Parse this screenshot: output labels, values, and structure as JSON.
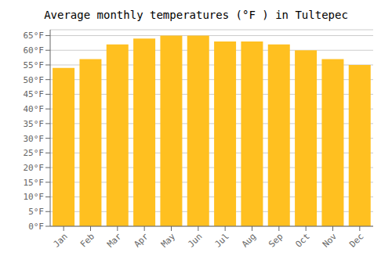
{
  "chart_data": {
    "type": "bar",
    "title": "Average monthly temperatures (°F ) in Tultepec",
    "categories": [
      "Jan",
      "Feb",
      "Mar",
      "Apr",
      "May",
      "Jun",
      "Jul",
      "Aug",
      "Sep",
      "Oct",
      "Nov",
      "Dec"
    ],
    "values": [
      54,
      57,
      62,
      64,
      65,
      65,
      63,
      63,
      62,
      60,
      57,
      55
    ],
    "color": "#FFC020",
    "ylim": [
      0,
      67
    ],
    "yticks": [
      {
        "value": 0,
        "label": "0°F"
      },
      {
        "value": 5,
        "label": "5°F"
      },
      {
        "value": 10,
        "label": "10°F"
      },
      {
        "value": 15,
        "label": "15°F"
      },
      {
        "value": 20,
        "label": "20°F"
      },
      {
        "value": 25,
        "label": "25°F"
      },
      {
        "value": 30,
        "label": "30°F"
      },
      {
        "value": 35,
        "label": "35°F"
      },
      {
        "value": 40,
        "label": "40°F"
      },
      {
        "value": 45,
        "label": "45°F"
      },
      {
        "value": 50,
        "label": "50°F"
      },
      {
        "value": 55,
        "label": "55°F"
      },
      {
        "value": 60,
        "label": "60°F"
      },
      {
        "value": 65,
        "label": "65°F"
      }
    ],
    "grid": true
  }
}
